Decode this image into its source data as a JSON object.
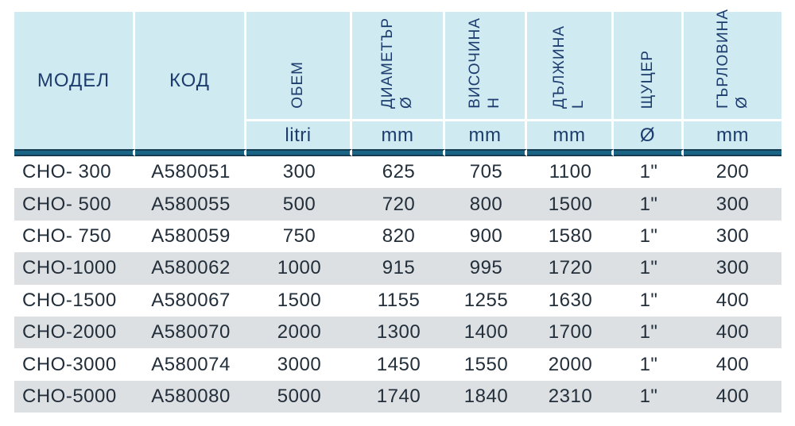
{
  "table": {
    "header": {
      "model": "МОДЕЛ",
      "code": "КОД",
      "rotated": [
        "ОБЕМ",
        "ДИАМЕТЪР\nØ",
        "ВИСОЧИНА\nH",
        "ДЪЛЖИНА\nL",
        "ЩУЦЕР",
        "ГЪРЛОВИНА\nØ"
      ],
      "units": [
        "litri",
        "mm",
        "mm",
        "mm",
        "Ø",
        "mm"
      ]
    },
    "rows": [
      [
        "CHO- 300",
        "A580051",
        "300",
        "625",
        "705",
        "1100",
        "1\"",
        "200"
      ],
      [
        "CHO- 500",
        "A580055",
        "500",
        "720",
        "800",
        "1500",
        "1\"",
        "300"
      ],
      [
        "CHO- 750",
        "A580059",
        "750",
        "820",
        "900",
        "1580",
        "1\"",
        "300"
      ],
      [
        "CHO-1000",
        "A580062",
        "1000",
        "915",
        "995",
        "1720",
        "1\"",
        "300"
      ],
      [
        "CHO-1500",
        "A580067",
        "1500",
        "1155",
        "1255",
        "1630",
        "1\"",
        "400"
      ],
      [
        "CHO-2000",
        "A580070",
        "2000",
        "1300",
        "1400",
        "1700",
        "1\"",
        "400"
      ],
      [
        "CHO-3000",
        "A580074",
        "3000",
        "1450",
        "1550",
        "2000",
        "1\"",
        "400"
      ],
      [
        "CHO-5000",
        "A580080",
        "5000",
        "1740",
        "1840",
        "2310",
        "1\"",
        "400"
      ]
    ]
  },
  "colors": {
    "header_bg": "#cfeaf1",
    "header_text": "#1d3c6e",
    "divider_mid": "#1a6486",
    "divider_edge": "#143b52",
    "row_alt_bg": "#dde0e3",
    "data_text": "#222e3a"
  },
  "chart_data": {
    "type": "table",
    "title": "",
    "columns": [
      "МОДЕЛ",
      "КОД",
      "ОБЕМ",
      "ДИАМЕТЪР Ø",
      "ВИСОЧИНА H",
      "ДЪЛЖИНА L",
      "ЩУЦЕР",
      "ГЪРЛОВИНА Ø"
    ],
    "units": [
      "",
      "",
      "litri",
      "mm",
      "mm",
      "mm",
      "Ø",
      "mm"
    ],
    "rows": [
      [
        "CHO- 300",
        "A580051",
        300,
        625,
        705,
        1100,
        "1\"",
        200
      ],
      [
        "CHO- 500",
        "A580055",
        500,
        720,
        800,
        1500,
        "1\"",
        300
      ],
      [
        "CHO- 750",
        "A580059",
        750,
        820,
        900,
        1580,
        "1\"",
        300
      ],
      [
        "CHO-1000",
        "A580062",
        1000,
        915,
        995,
        1720,
        "1\"",
        300
      ],
      [
        "CHO-1500",
        "A580067",
        1500,
        1155,
        1255,
        1630,
        "1\"",
        400
      ],
      [
        "CHO-2000",
        "A580070",
        2000,
        1300,
        1400,
        1700,
        "1\"",
        400
      ],
      [
        "CHO-3000",
        "A580074",
        3000,
        1450,
        1550,
        2000,
        "1\"",
        400
      ],
      [
        "CHO-5000",
        "A580080",
        5000,
        1740,
        1840,
        2310,
        "1\"",
        400
      ]
    ]
  }
}
